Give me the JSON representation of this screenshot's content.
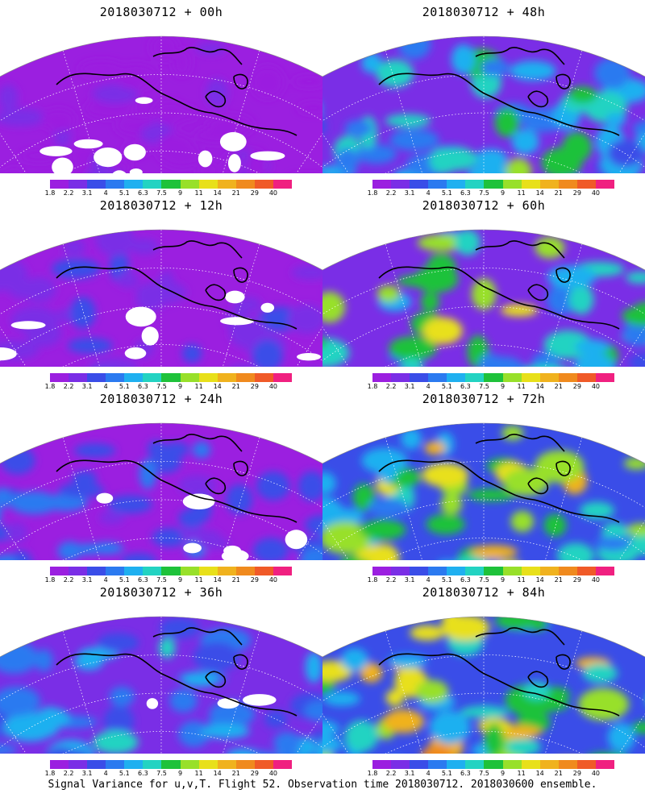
{
  "panels": [
    {
      "title": "2018030712 + 00h",
      "intensity": 0.05
    },
    {
      "title": "2018030712 + 48h",
      "intensity": 0.55
    },
    {
      "title": "2018030712 + 12h",
      "intensity": 0.15
    },
    {
      "title": "2018030712 + 60h",
      "intensity": 0.62
    },
    {
      "title": "2018030712 + 24h",
      "intensity": 0.28
    },
    {
      "title": "2018030712 + 72h",
      "intensity": 0.72
    },
    {
      "title": "2018030712 + 36h",
      "intensity": 0.38
    },
    {
      "title": "2018030712 + 84h",
      "intensity": 0.82
    }
  ],
  "colorbar": {
    "labels": [
      "1.8",
      "2.2",
      "3.1",
      "4",
      "5.1",
      "6.3",
      "7.5",
      "9",
      "11",
      "14",
      "21",
      "29",
      "40"
    ],
    "colors": [
      "#9b1fe0",
      "#7a2ee6",
      "#3a4de8",
      "#2b7af0",
      "#1fb0f0",
      "#23d3c2",
      "#1ec23a",
      "#98e02a",
      "#e8e01a",
      "#f0b21e",
      "#f08a1e",
      "#f05a28",
      "#f02080"
    ]
  },
  "footer": "Signal Variance for u,v,T. Flight 52. Observation time 2018030712. 2018030600 ensemble."
}
